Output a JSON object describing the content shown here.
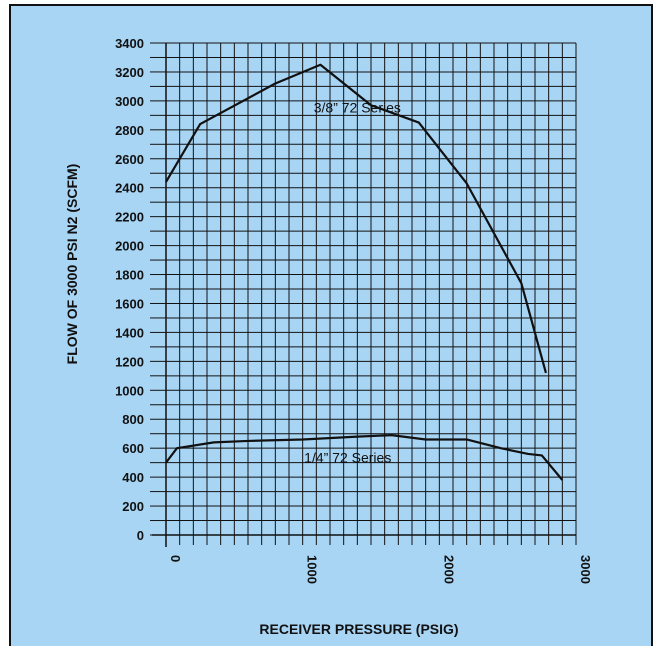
{
  "chart_data": {
    "type": "line",
    "xlabel": "RECEIVER PRESSURE (PSIG)",
    "ylabel": "FLOW OF 3000 PSI N2 (SCFM)",
    "xlim": [
      0,
      3000
    ],
    "ylim": [
      0,
      3400
    ],
    "x_ticks": [
      "0",
      "1000",
      "2000",
      "3000"
    ],
    "y_ticks": [
      "0",
      "200",
      "400",
      "600",
      "800",
      "1000",
      "1200",
      "1400",
      "1600",
      "1800",
      "2000",
      "2200",
      "2400",
      "2600",
      "2800",
      "3000",
      "3200",
      "3400"
    ],
    "grid": true,
    "colors": {
      "background": "#a9d5f5",
      "line": "#111111",
      "grid": "#111111"
    },
    "series": [
      {
        "name": "3/8” 72 Series",
        "points": [
          [
            0,
            2440
          ],
          [
            250,
            2840
          ],
          [
            800,
            3120
          ],
          [
            1130,
            3250
          ],
          [
            1500,
            2970
          ],
          [
            1850,
            2850
          ],
          [
            2200,
            2430
          ],
          [
            2600,
            1740
          ],
          [
            2780,
            1120
          ]
        ]
      },
      {
        "name": "1/4” 72 Series",
        "points": [
          [
            0,
            500
          ],
          [
            80,
            600
          ],
          [
            350,
            640
          ],
          [
            600,
            650
          ],
          [
            1000,
            660
          ],
          [
            1400,
            680
          ],
          [
            1650,
            690
          ],
          [
            1900,
            660
          ],
          [
            2200,
            660
          ],
          [
            2450,
            600
          ],
          [
            2650,
            560
          ],
          [
            2750,
            550
          ],
          [
            2900,
            380
          ]
        ]
      }
    ]
  }
}
